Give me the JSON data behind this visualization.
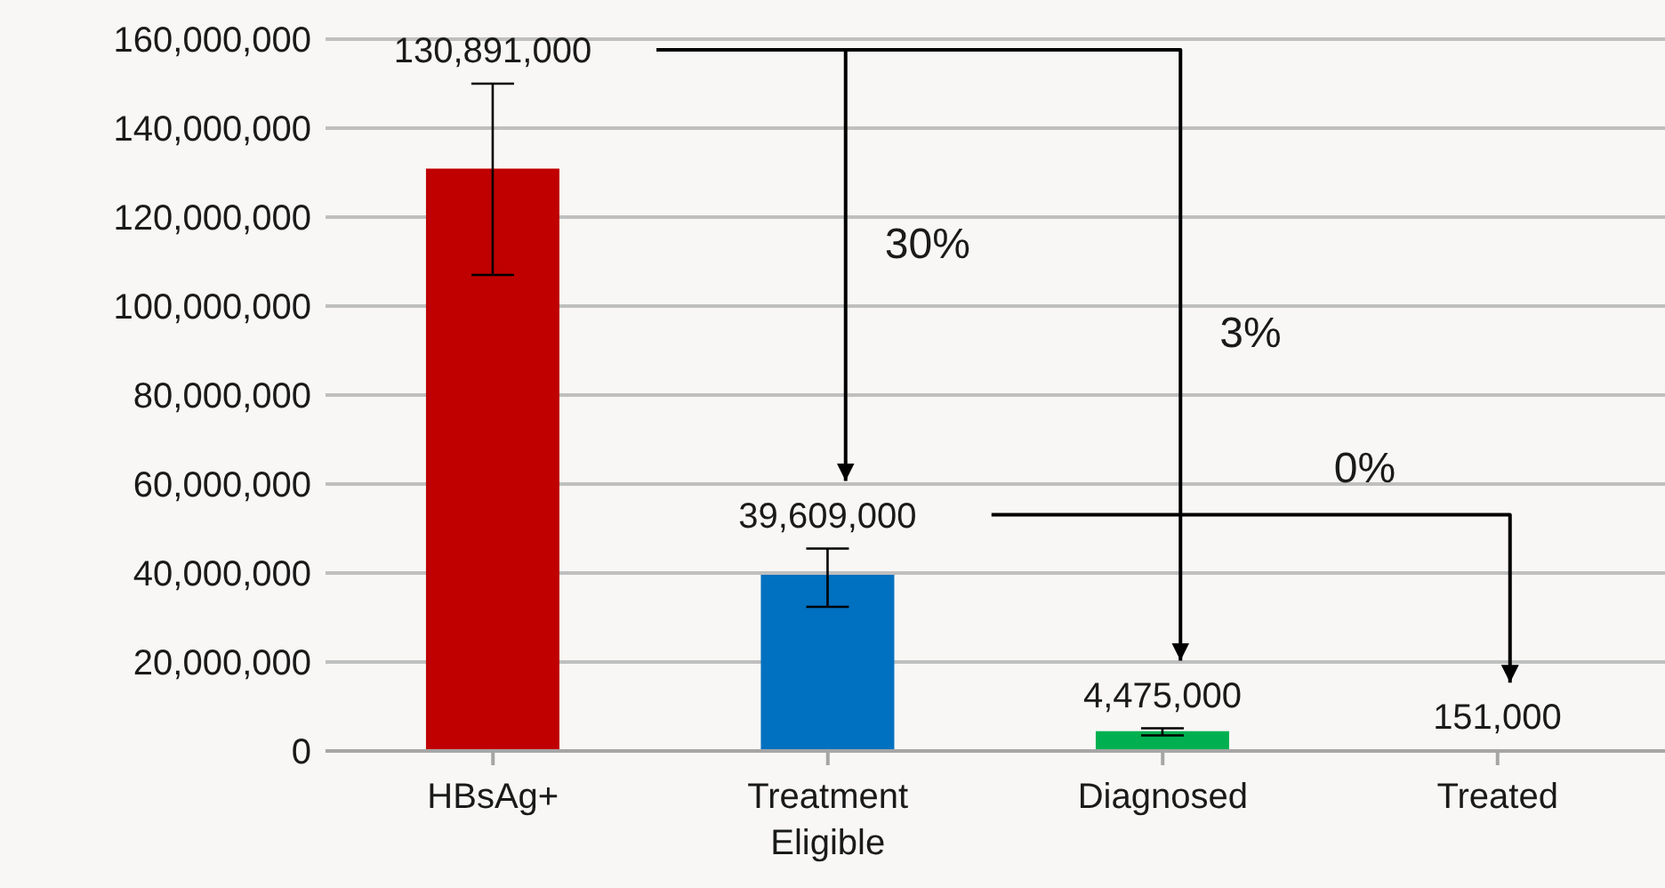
{
  "chart_data": {
    "type": "bar",
    "categories": [
      "HBsAg+",
      "Treatment Eligible",
      "Diagnosed",
      "Treated"
    ],
    "values": [
      130891000,
      39609000,
      4475000,
      151000
    ],
    "value_labels": [
      "130,891,000",
      "39,609,000",
      "4,475,000",
      "151,000"
    ],
    "colors": [
      "#c00000",
      "#0070c0",
      "#00b050",
      "#7030a0"
    ],
    "errors": [
      [
        107000000,
        150000000
      ],
      [
        32400000,
        45500000
      ],
      [
        3500000,
        5100000
      ],
      null
    ],
    "ylim": [
      0,
      160000000
    ],
    "yticks": [
      {
        "value": 0,
        "label": "0"
      },
      {
        "value": 20000000,
        "label": "20,000,000"
      },
      {
        "value": 40000000,
        "label": "40,000,000"
      },
      {
        "value": 60000000,
        "label": "60,000,000"
      },
      {
        "value": 80000000,
        "label": "80,000,000"
      },
      {
        "value": 100000000,
        "label": "100,000,000"
      },
      {
        "value": 120000000,
        "label": "120,000,000"
      },
      {
        "value": 140000000,
        "label": "140,000,000"
      },
      {
        "value": 160000000,
        "label": "160,000,000"
      }
    ],
    "grid": "y",
    "annotations": [
      "30%",
      "3%",
      "0%"
    ]
  }
}
